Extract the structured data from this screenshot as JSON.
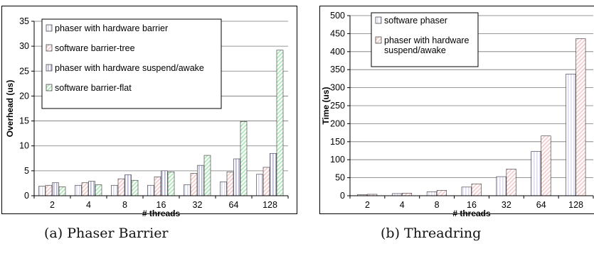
{
  "charts": [
    {
      "caption": "(a) Phaser Barrier",
      "chart_data": {
        "type": "bar",
        "xlabel": "# threads",
        "ylabel": "Overhead (us)",
        "ylim": [
          0,
          35
        ],
        "yticks": [
          0,
          5,
          10,
          15,
          20,
          25,
          30,
          35
        ],
        "grid": true,
        "legend_position": "top-left",
        "categories": [
          "2",
          "4",
          "8",
          "16",
          "32",
          "64",
          "128"
        ],
        "series": [
          {
            "name": "phaser with hardware barrier",
            "color": "#dcdcf5",
            "values": [
              1.9,
              2.1,
              2.1,
              2.1,
              2.2,
              2.8,
              4.3
            ]
          },
          {
            "name": "software barrier-tree",
            "color": "#f5c8c8",
            "values": [
              2.1,
              2.6,
              3.4,
              3.8,
              4.5,
              4.8,
              5.7
            ]
          },
          {
            "name": "phaser with hardware suspend/awake",
            "color": "#b4b4dc",
            "values": [
              2.6,
              2.9,
              4.2,
              5.0,
              6.1,
              7.4,
              8.5
            ]
          },
          {
            "name": "software barrier-flat",
            "color": "#a8e6b4",
            "values": [
              1.8,
              2.2,
              3.1,
              4.8,
              8.1,
              14.9,
              29.2
            ]
          }
        ]
      }
    },
    {
      "caption": "(b) Threadring",
      "chart_data": {
        "type": "bar",
        "xlabel": "# threads",
        "ylabel": "Time (us)",
        "ylim": [
          0,
          500
        ],
        "yticks": [
          0,
          50,
          100,
          150,
          200,
          250,
          300,
          350,
          400,
          450,
          500
        ],
        "grid": true,
        "legend_position": "top-left",
        "categories": [
          "2",
          "4",
          "8",
          "16",
          "32",
          "64",
          "128"
        ],
        "series": [
          {
            "name": "software phaser",
            "color": "#dcdcf5",
            "values": [
              3,
              6,
              11,
              24,
              53,
              123,
              338
            ]
          },
          {
            "name": "phaser with hardware suspend/awake",
            "color": "#f5c8c8",
            "values": [
              4,
              7,
              15,
              33,
              74,
              166,
              436
            ]
          }
        ]
      }
    }
  ]
}
